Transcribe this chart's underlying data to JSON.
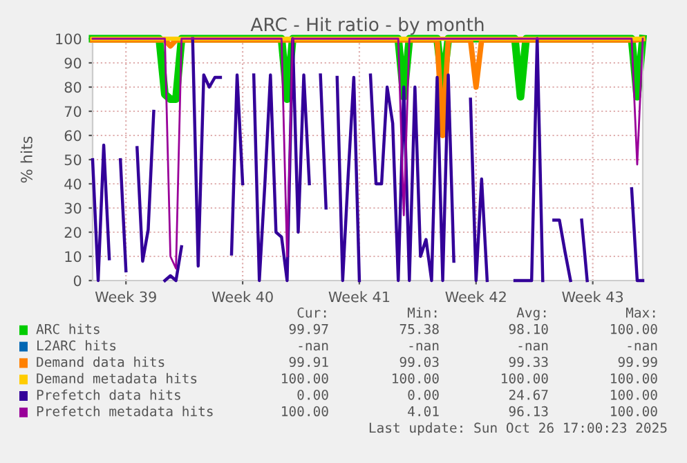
{
  "chart_data": {
    "type": "line",
    "title": "ARC - Hit ratio - by month",
    "ylabel": "% hits",
    "ylim": [
      0,
      100
    ],
    "yticks": [
      0,
      10,
      20,
      30,
      40,
      50,
      60,
      70,
      80,
      90,
      100
    ],
    "grid": true,
    "legend": "bottom",
    "marker": "none",
    "line_style": "solid",
    "categories": [
      null,
      null,
      null,
      null,
      null,
      null,
      "Week 39",
      null,
      null,
      null,
      null,
      null,
      null,
      null,
      null,
      null,
      null,
      null,
      null,
      null,
      null,
      null,
      null,
      null,
      null,
      null,
      null,
      "Week 40",
      null,
      null,
      null,
      null,
      null,
      null,
      null,
      null,
      null,
      null,
      null,
      null,
      null,
      null,
      null,
      null,
      null,
      null,
      null,
      null,
      "Week 41",
      null,
      null,
      null,
      null,
      null,
      null,
      null,
      null,
      null,
      null,
      null,
      null,
      null,
      null,
      null,
      null,
      null,
      null,
      null,
      null,
      "Week 42",
      null,
      null,
      null,
      null,
      null,
      null,
      null,
      null,
      null,
      null,
      null,
      null,
      null,
      null,
      null,
      null,
      null,
      null,
      null,
      null,
      "Week 43",
      null,
      null,
      null,
      null,
      null,
      null,
      null,
      null,
      null
    ],
    "series": [
      {
        "name": "ARC hits",
        "color": "#00cc00",
        "values": [
          100,
          100,
          100,
          100,
          100,
          100,
          100,
          100,
          100,
          100,
          100,
          100,
          100,
          77,
          75,
          75,
          100,
          100,
          100,
          100,
          100,
          100,
          100,
          100,
          100,
          100,
          100,
          100,
          100,
          100,
          100,
          100,
          100,
          100,
          100,
          75,
          100,
          100,
          100,
          100,
          100,
          100,
          100,
          100,
          100,
          100,
          100,
          100,
          100,
          100,
          100,
          100,
          100,
          100,
          100,
          100,
          76,
          100,
          100,
          100,
          100,
          100,
          100,
          80,
          100,
          100,
          100,
          100,
          100,
          100,
          100,
          100,
          100,
          100,
          100,
          100,
          100,
          76,
          100,
          100,
          100,
          100,
          100,
          100,
          100,
          100,
          100,
          100,
          100,
          100,
          100,
          100,
          100,
          100,
          100,
          100,
          100,
          100,
          76,
          100
        ]
      },
      {
        "name": "L2ARC hits",
        "color": "#0066b3",
        "values": [
          null,
          null,
          null,
          null,
          null,
          null,
          null,
          null,
          null,
          null,
          null,
          null,
          null,
          null,
          null,
          null,
          null,
          null,
          null,
          null,
          null,
          null,
          null,
          null,
          null,
          null,
          null,
          null,
          null,
          null,
          null,
          null,
          null,
          null,
          null,
          null,
          null,
          null,
          null,
          null,
          null,
          null,
          null,
          null,
          null,
          null,
          null,
          null,
          null,
          null,
          null,
          null,
          null,
          null,
          null,
          null,
          null,
          null,
          null,
          null,
          null,
          null,
          null,
          null,
          null,
          null,
          null,
          null,
          null,
          null,
          null,
          null,
          null,
          null,
          null,
          null,
          null,
          null,
          null,
          null,
          null,
          null,
          null,
          null,
          null,
          null,
          null,
          null,
          null,
          null,
          null,
          null,
          null,
          null,
          null,
          null,
          null,
          null,
          null,
          null
        ]
      },
      {
        "name": "Demand data hits",
        "color": "#ff8000",
        "values": [
          99.5,
          99.5,
          99.5,
          99.5,
          99.5,
          99.5,
          99.5,
          99.5,
          99.5,
          99.5,
          99.5,
          99.5,
          99.5,
          99.5,
          97,
          99.5,
          99.5,
          99.5,
          99.5,
          99.5,
          99.5,
          99.5,
          99.5,
          99.5,
          99.5,
          99.5,
          99.5,
          99.5,
          99.5,
          99.5,
          99.5,
          99.5,
          99.5,
          99.5,
          99.5,
          99.5,
          99.5,
          99.5,
          99.5,
          99.5,
          99.5,
          99.5,
          99.5,
          99.5,
          99.5,
          99.5,
          99.5,
          99.5,
          99.5,
          99.5,
          99.5,
          99.5,
          99.5,
          99.5,
          99.5,
          99.5,
          99.5,
          99.5,
          99.5,
          99.5,
          99.5,
          99.5,
          99.5,
          60,
          99.5,
          99.5,
          99.5,
          99.5,
          99.5,
          80,
          99.5,
          99.5,
          99.5,
          99.5,
          99.5,
          99.5,
          99.5,
          99.5,
          99.5,
          99.5,
          99.5,
          99.5,
          99.5,
          99.5,
          99.5,
          99.5,
          99.5,
          99.5,
          99.5,
          99.5,
          99.5,
          99.5,
          99.5,
          99.5,
          99.5,
          99.5,
          99.5,
          99.5,
          99.5,
          99.9
        ]
      },
      {
        "name": "Demand metadata hits",
        "color": "#ffcc00",
        "values": [
          100,
          100,
          100,
          100,
          100,
          100,
          100,
          100,
          100,
          100,
          100,
          100,
          100,
          100,
          100,
          100,
          100,
          100,
          100,
          100,
          100,
          100,
          100,
          100,
          100,
          100,
          100,
          100,
          100,
          100,
          100,
          100,
          100,
          100,
          100,
          100,
          100,
          100,
          100,
          100,
          100,
          100,
          100,
          100,
          100,
          100,
          100,
          100,
          100,
          100,
          100,
          100,
          100,
          100,
          100,
          100,
          100,
          100,
          100,
          100,
          100,
          100,
          100,
          100,
          100,
          100,
          100,
          100,
          100,
          100,
          100,
          100,
          100,
          100,
          100,
          100,
          100,
          100,
          100,
          100,
          100,
          100,
          100,
          100,
          100,
          100,
          100,
          100,
          100,
          100,
          100,
          100,
          100,
          100,
          100,
          100,
          100,
          100,
          100,
          100
        ]
      },
      {
        "name": "Prefetch data hits",
        "color": "#330099",
        "values": [
          50,
          0,
          56,
          9,
          null,
          50,
          4,
          null,
          55,
          8,
          21,
          70,
          null,
          0,
          2,
          0,
          14,
          null,
          100,
          6,
          85,
          80,
          84,
          84,
          null,
          11,
          85,
          40,
          null,
          85,
          0,
          40,
          85,
          20,
          18,
          0,
          100,
          20,
          85,
          40,
          null,
          85,
          30,
          null,
          84,
          0,
          44,
          84,
          0,
          null,
          85,
          40,
          40,
          80,
          65,
          0,
          80,
          0,
          80,
          10,
          17,
          0,
          84,
          0,
          85,
          8,
          null,
          null,
          75,
          0,
          42,
          0,
          null,
          null,
          null,
          null,
          0,
          0,
          0,
          0,
          100,
          0,
          null,
          25,
          25,
          12,
          0,
          null,
          25,
          0,
          null,
          null,
          null,
          null,
          null,
          null,
          null,
          38,
          0,
          0
        ]
      },
      {
        "name": "Prefetch metadata hits",
        "color": "#990099",
        "values": [
          100,
          100,
          100,
          100,
          100,
          100,
          100,
          100,
          100,
          100,
          100,
          100,
          100,
          100,
          10,
          5,
          100,
          100,
          100,
          100,
          100,
          100,
          100,
          100,
          100,
          100,
          100,
          100,
          100,
          100,
          100,
          100,
          100,
          100,
          100,
          10,
          100,
          100,
          100,
          100,
          100,
          100,
          100,
          100,
          100,
          100,
          100,
          100,
          100,
          100,
          100,
          100,
          100,
          100,
          100,
          100,
          27,
          100,
          100,
          100,
          100,
          100,
          100,
          100,
          100,
          100,
          100,
          100,
          100,
          100,
          100,
          100,
          100,
          100,
          100,
          100,
          100,
          100,
          100,
          100,
          100,
          100,
          100,
          100,
          100,
          100,
          100,
          100,
          100,
          100,
          100,
          100,
          100,
          100,
          100,
          100,
          100,
          100,
          48,
          100
        ]
      }
    ],
    "annotations": [
      "Cur:",
      "Min:",
      "Avg:",
      "Max:",
      "99.97",
      "75.38",
      "98.10",
      "100.00",
      "-nan",
      "-nan",
      "-nan",
      "-nan",
      "99.91",
      "99.03",
      "99.33",
      "99.99",
      "100.00",
      "100.00",
      "100.00",
      "100.00",
      "0.00",
      "0.00",
      "24.67",
      "100.00",
      "100.00",
      "4.01",
      "96.13",
      "100.00",
      "Last update: Sun Oct 26 17:00:23 2025"
    ]
  }
}
